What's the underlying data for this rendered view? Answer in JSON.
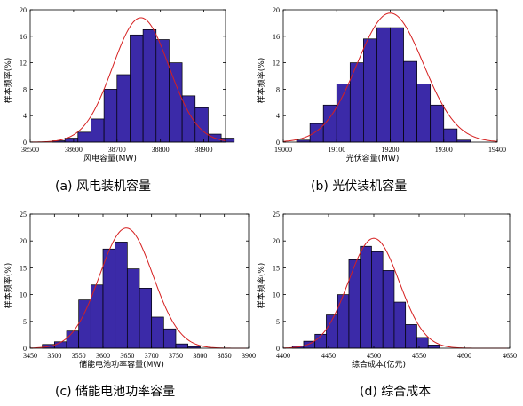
{
  "chart_data": [
    {
      "type": "bar",
      "caption": "(a)  风电装机容量",
      "xlabel": "风电容量(MW)",
      "ylabel": "样本频率(%)",
      "xlim": [
        38500,
        38950
      ],
      "ylim": [
        0,
        20
      ],
      "xticks": [
        38500,
        38600,
        38700,
        38800,
        38900
      ],
      "yticks": [
        0,
        4,
        8,
        12,
        16,
        20
      ],
      "bin_width": 30,
      "bins": [
        {
          "x0": 38550,
          "value": 0.2
        },
        {
          "x0": 38580,
          "value": 0.6
        },
        {
          "x0": 38610,
          "value": 1.5
        },
        {
          "x0": 38640,
          "value": 3.5
        },
        {
          "x0": 38670,
          "value": 8.0
        },
        {
          "x0": 38700,
          "value": 10.2
        },
        {
          "x0": 38730,
          "value": 16.2
        },
        {
          "x0": 38760,
          "value": 17.0
        },
        {
          "x0": 38790,
          "value": 15.5
        },
        {
          "x0": 38820,
          "value": 12.0
        },
        {
          "x0": 38850,
          "value": 7.0
        },
        {
          "x0": 38880,
          "value": 5.2
        },
        {
          "x0": 38910,
          "value": 1.2
        },
        {
          "x0": 38940,
          "value": 0.6
        }
      ],
      "fit": {
        "mean": 38755,
        "sd": 65,
        "peak": 18.8
      }
    },
    {
      "type": "bar",
      "caption": "(b)  光伏装机容量",
      "xlabel": "光伏容量(MW)",
      "ylabel": "样本频率(%)",
      "xlim": [
        19000,
        19400
      ],
      "ylim": [
        0,
        20
      ],
      "xticks": [
        19000,
        19100,
        19200,
        19300,
        19400
      ],
      "yticks": [
        0,
        4,
        8,
        12,
        16,
        20
      ],
      "bin_width": 25,
      "bins": [
        {
          "x0": 19025,
          "value": 0.3
        },
        {
          "x0": 19050,
          "value": 2.8
        },
        {
          "x0": 19075,
          "value": 5.6
        },
        {
          "x0": 19100,
          "value": 8.8
        },
        {
          "x0": 19125,
          "value": 12.0
        },
        {
          "x0": 19150,
          "value": 15.6
        },
        {
          "x0": 19175,
          "value": 17.3
        },
        {
          "x0": 19200,
          "value": 17.3
        },
        {
          "x0": 19225,
          "value": 12.2
        },
        {
          "x0": 19250,
          "value": 8.8
        },
        {
          "x0": 19275,
          "value": 5.6
        },
        {
          "x0": 19300,
          "value": 2.0
        },
        {
          "x0": 19325,
          "value": 0.3
        }
      ],
      "fit": {
        "mean": 19200,
        "sd": 62,
        "peak": 19.5
      }
    },
    {
      "type": "bar",
      "caption": "(c)  储能电池功率容量",
      "xlabel": "储能电池功率容量(MW)",
      "ylabel": "样本频率(%)",
      "xlim": [
        3450,
        3900
      ],
      "ylim": [
        0,
        25
      ],
      "xticks": [
        3450,
        3500,
        3550,
        3600,
        3650,
        3700,
        3750,
        3800,
        3850,
        3900
      ],
      "yticks": [
        0,
        5,
        10,
        15,
        20,
        25
      ],
      "bin_width": 25,
      "bins": [
        {
          "x0": 3475,
          "value": 0.7
        },
        {
          "x0": 3500,
          "value": 1.2
        },
        {
          "x0": 3525,
          "value": 3.2
        },
        {
          "x0": 3550,
          "value": 9.0
        },
        {
          "x0": 3575,
          "value": 11.8
        },
        {
          "x0": 3600,
          "value": 18.5
        },
        {
          "x0": 3625,
          "value": 19.8
        },
        {
          "x0": 3650,
          "value": 14.8
        },
        {
          "x0": 3675,
          "value": 11.2
        },
        {
          "x0": 3700,
          "value": 5.8
        },
        {
          "x0": 3725,
          "value": 3.6
        },
        {
          "x0": 3750,
          "value": 0.8
        },
        {
          "x0": 3775,
          "value": 0.3
        }
      ],
      "fit": {
        "mean": 3648,
        "sd": 55,
        "peak": 22.4
      }
    },
    {
      "type": "bar",
      "caption": "(d)  综合成本",
      "xlabel": "综合成本(亿元)",
      "ylabel": "样本频率(%)",
      "xlim": [
        4400,
        4650
      ],
      "ylim": [
        0,
        25
      ],
      "xticks": [
        4400,
        4450,
        4500,
        4550,
        4600,
        4650
      ],
      "yticks": [
        0,
        5,
        10,
        15,
        20,
        25
      ],
      "bin_width": 12.5,
      "bins": [
        {
          "x0": 4410,
          "value": 0.4
        },
        {
          "x0": 4422.5,
          "value": 1.3
        },
        {
          "x0": 4435,
          "value": 2.6
        },
        {
          "x0": 4447.5,
          "value": 6.2
        },
        {
          "x0": 4460,
          "value": 10.0
        },
        {
          "x0": 4472.5,
          "value": 16.5
        },
        {
          "x0": 4485,
          "value": 19.0
        },
        {
          "x0": 4497.5,
          "value": 18.0
        },
        {
          "x0": 4510,
          "value": 14.5
        },
        {
          "x0": 4522.5,
          "value": 8.6
        },
        {
          "x0": 4535,
          "value": 4.4
        },
        {
          "x0": 4547.5,
          "value": 2.0
        },
        {
          "x0": 4560,
          "value": 0.6
        }
      ],
      "fit": {
        "mean": 4500,
        "sd": 28,
        "peak": 20.5
      }
    }
  ]
}
